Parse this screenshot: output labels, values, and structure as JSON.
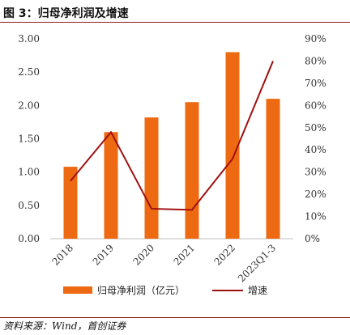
{
  "page": {
    "figure_title": "图 3：归母净利润及增速",
    "source": "资料来源：Wind，首创证券"
  },
  "colors": {
    "bar": "#ee6a12",
    "line": "#a01010",
    "rule": "#8b1a1a",
    "axis": "#bfbfbf"
  },
  "chart_data": {
    "type": "bar",
    "categories": [
      "2018",
      "2019",
      "2020",
      "2021",
      "2022",
      "2023Q1-3"
    ],
    "series": [
      {
        "name": "归母净利润（亿元）",
        "type": "bar",
        "axis": "left",
        "values": [
          1.08,
          1.6,
          1.82,
          2.05,
          2.8,
          2.1
        ]
      },
      {
        "name": "增速",
        "type": "line",
        "axis": "right",
        "values": [
          26,
          48,
          13.5,
          13,
          36,
          80
        ]
      }
    ],
    "y_left": {
      "min": 0,
      "max": 3.0,
      "ticks": [
        "0.00",
        "0.50",
        "1.00",
        "1.50",
        "2.00",
        "2.50",
        "3.00"
      ]
    },
    "y_right": {
      "min": 0,
      "max": 90,
      "ticks": [
        "0%",
        "10%",
        "20%",
        "30%",
        "40%",
        "50%",
        "60%",
        "70%",
        "80%",
        "90%"
      ]
    },
    "grid": false,
    "legend_position": "bottom"
  }
}
